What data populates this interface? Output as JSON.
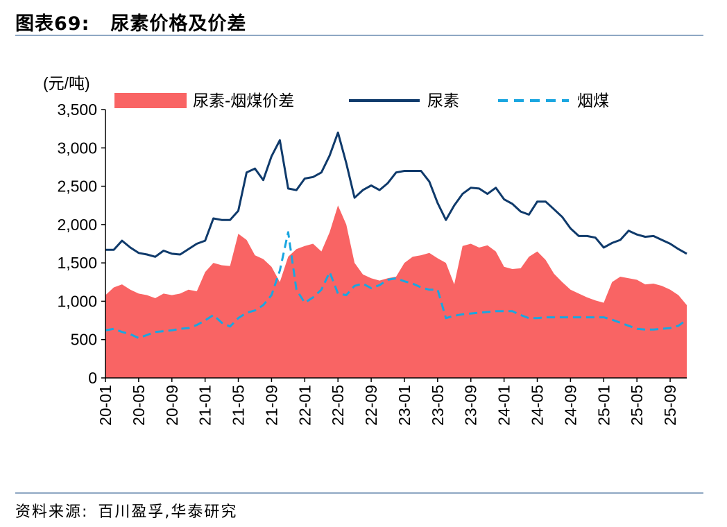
{
  "header": {
    "figure_label": "图表69:",
    "title": "尿素价格及价差"
  },
  "footer": {
    "source_label": "资料来源:",
    "source_text": "百川盈孚,华泰研究"
  },
  "chart_data": {
    "type": "area",
    "unit": "(元/吨)",
    "ylim": [
      0,
      3500
    ],
    "yticks": [
      0,
      500,
      1000,
      1500,
      2000,
      2500,
      3000,
      3500
    ],
    "ytick_labels": [
      "0",
      "500",
      "1,000",
      "1,500",
      "2,000",
      "2,500",
      "3,000",
      "3,500"
    ],
    "xtick_labels": [
      "20-01",
      "20-05",
      "20-09",
      "21-01",
      "21-05",
      "21-09",
      "22-01",
      "22-05",
      "22-09",
      "23-01",
      "23-05",
      "23-09",
      "24-01",
      "24-05",
      "24-09",
      "25-01",
      "25-05",
      "25-09"
    ],
    "grid": false,
    "legend_position": "top",
    "x": [
      "20-01",
      "20-02",
      "20-03",
      "20-04",
      "20-05",
      "20-06",
      "20-07",
      "20-08",
      "20-09",
      "20-10",
      "20-11",
      "20-12",
      "21-01",
      "21-02",
      "21-03",
      "21-04",
      "21-05",
      "21-06",
      "21-07",
      "21-08",
      "21-09",
      "21-10",
      "21-11",
      "21-12",
      "22-01",
      "22-02",
      "22-03",
      "22-04",
      "22-05",
      "22-06",
      "22-07",
      "22-08",
      "22-09",
      "22-10",
      "22-11",
      "22-12",
      "23-01",
      "23-02",
      "23-03",
      "23-04",
      "23-05",
      "23-06",
      "23-07",
      "23-08",
      "23-09",
      "23-10",
      "23-11",
      "23-12",
      "24-01",
      "24-02",
      "24-03",
      "24-04",
      "24-05",
      "24-06",
      "24-07",
      "24-08",
      "24-09",
      "24-10",
      "24-11",
      "24-12",
      "25-01",
      "25-02",
      "25-03",
      "25-04",
      "25-05",
      "25-06",
      "25-07",
      "25-08",
      "25-09",
      "25-10",
      "25-11"
    ],
    "series": [
      {
        "name": "尿素-烟煤价差",
        "style": "area",
        "color": "#f96464",
        "values": [
          1080,
          1180,
          1220,
          1150,
          1100,
          1080,
          1040,
          1100,
          1080,
          1100,
          1150,
          1130,
          1380,
          1500,
          1470,
          1460,
          1880,
          1800,
          1600,
          1550,
          1450,
          1250,
          1580,
          1680,
          1720,
          1750,
          1650,
          1900,
          2250,
          2000,
          1500,
          1350,
          1300,
          1270,
          1300,
          1320,
          1500,
          1580,
          1600,
          1630,
          1560,
          1500,
          1220,
          1720,
          1750,
          1700,
          1730,
          1650,
          1450,
          1420,
          1430,
          1580,
          1650,
          1540,
          1360,
          1250,
          1150,
          1100,
          1050,
          1010,
          980,
          1250,
          1320,
          1300,
          1280,
          1220,
          1230,
          1200,
          1150,
          1080,
          950
        ]
      },
      {
        "name": "尿素",
        "style": "solid",
        "color": "#0f3a6b",
        "values": [
          1670,
          1670,
          1790,
          1700,
          1630,
          1610,
          1580,
          1660,
          1620,
          1610,
          1680,
          1750,
          1790,
          2080,
          2060,
          2060,
          2180,
          2680,
          2730,
          2580,
          2890,
          3100,
          2470,
          2450,
          2600,
          2620,
          2680,
          2900,
          3200,
          2800,
          2350,
          2450,
          2510,
          2450,
          2540,
          2680,
          2700,
          2700,
          2700,
          2560,
          2280,
          2060,
          2250,
          2400,
          2480,
          2470,
          2400,
          2480,
          2330,
          2270,
          2170,
          2130,
          2300,
          2300,
          2200,
          2100,
          1950,
          1850,
          1850,
          1830,
          1700,
          1760,
          1800,
          1920,
          1870,
          1840,
          1850,
          1800,
          1750,
          1680,
          1620
        ]
      },
      {
        "name": "烟煤",
        "style": "dashed",
        "color": "#1aa6e0",
        "values": [
          620,
          640,
          600,
          570,
          520,
          560,
          600,
          610,
          620,
          640,
          650,
          690,
          750,
          820,
          720,
          670,
          780,
          850,
          880,
          950,
          1080,
          1400,
          1900,
          1150,
          980,
          1050,
          1150,
          1380,
          1100,
          1080,
          1200,
          1230,
          1170,
          1210,
          1280,
          1300,
          1260,
          1230,
          1180,
          1150,
          1150,
          780,
          810,
          830,
          840,
          850,
          860,
          870,
          870,
          870,
          820,
          780,
          780,
          790,
          790,
          790,
          790,
          790,
          790,
          790,
          790,
          760,
          720,
          680,
          640,
          630,
          630,
          640,
          650,
          680,
          760
        ]
      }
    ]
  }
}
